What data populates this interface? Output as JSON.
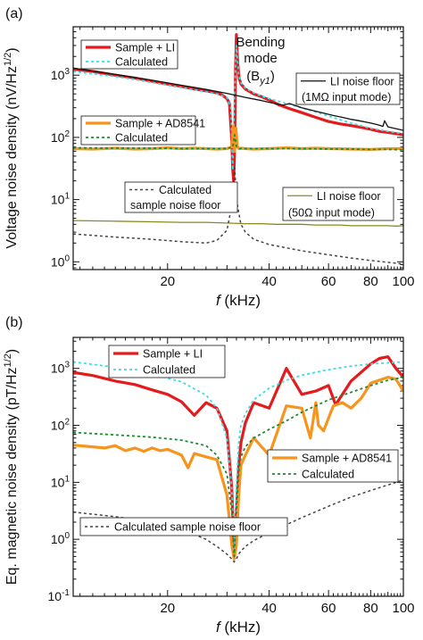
{
  "chart_data": [
    {
      "panel_label": "(a)",
      "type": "line",
      "xlabel_var": "f",
      "xlabel_unit": " (kHz)",
      "ylabel": "Voltage noise density (nV/Hz",
      "ylabel_exp": "1/2",
      "ylabel_close": ")",
      "x_scale": "log",
      "y_scale": "log",
      "xlim": [
        10.5,
        100
      ],
      "ylim": [
        0.75,
        6000
      ],
      "x_ticks": [
        20,
        40,
        60,
        80,
        100
      ],
      "x_tick_labels": [
        "20",
        "40",
        "60",
        "80",
        "100"
      ],
      "y_ticks": [
        1,
        10,
        100,
        1000
      ],
      "y_tick_labels": [
        [
          "10",
          "0"
        ],
        [
          "10",
          "1"
        ],
        [
          "10",
          "2"
        ],
        [
          "10",
          "3"
        ]
      ],
      "annotation": {
        "line1": "Bending",
        "line2": "mode",
        "line3": "(B",
        "sub": "y1",
        "line3_close": ")"
      },
      "legend": [
        {
          "box": "a-leg1",
          "entries": [
            {
              "series": 0,
              "label": "Sample + LI"
            },
            {
              "series": 1,
              "label": "Calculated"
            }
          ]
        },
        {
          "box": "a-leg2",
          "entries": [
            {
              "series": 2,
              "label": "Sample + AD8541"
            },
            {
              "series": 3,
              "label": "Calculated"
            }
          ]
        },
        {
          "box": "a-leg3",
          "entries": [
            {
              "series": 4,
              "label": "LI noise floor"
            },
            {
              "series": -1,
              "label": "(1MΩ input mode)"
            }
          ]
        },
        {
          "box": "a-leg4",
          "entries": [
            {
              "series": 6,
              "label": "Calculated"
            },
            {
              "series": -1,
              "label": "sample noise floor"
            }
          ]
        },
        {
          "box": "a-leg5",
          "entries": [
            {
              "series": 5,
              "label": "LI noise floor"
            },
            {
              "series": -1,
              "label": "(50Ω input mode)"
            }
          ]
        }
      ],
      "series": [
        {
          "name": "Sample + LI",
          "color": "#e41a1c",
          "width": 3.2,
          "dash": "",
          "x": [
            10.5,
            12,
            14,
            16,
            18,
            20,
            22,
            24,
            26,
            28,
            29,
            30,
            30.5,
            31,
            31.2,
            31.4,
            31.6,
            31.8,
            32,
            32.3,
            32.6,
            33,
            34,
            36,
            38,
            40,
            43,
            46,
            50,
            55,
            60,
            65,
            70,
            75,
            80,
            85,
            90,
            95,
            100
          ],
          "y": [
            1250,
            1150,
            1000,
            900,
            800,
            720,
            660,
            600,
            560,
            520,
            480,
            420,
            350,
            90,
            30,
            20,
            60,
            1200,
            4500,
            1500,
            900,
            720,
            600,
            500,
            450,
            400,
            330,
            290,
            250,
            210,
            180,
            165,
            155,
            145,
            135,
            125,
            120,
            115,
            110
          ]
        },
        {
          "name": "Calculated",
          "color": "#40dbe6",
          "width": 1.8,
          "dash": "3,3",
          "x": [
            10.5,
            12,
            14,
            16,
            18,
            20,
            22,
            24,
            26,
            28,
            30,
            30.8,
            31.2,
            31.6,
            32,
            32.5,
            33,
            34,
            36,
            38,
            40,
            45,
            50,
            60,
            70,
            80,
            90,
            100
          ],
          "y": [
            1150,
            1050,
            950,
            850,
            760,
            690,
            630,
            580,
            540,
            500,
            440,
            300,
            30,
            500,
            3000,
            1000,
            750,
            620,
            520,
            460,
            420,
            350,
            300,
            220,
            170,
            140,
            125,
            115
          ]
        },
        {
          "name": "Sample + AD8541",
          "color": "#f7941d",
          "width": 3.2,
          "dash": "",
          "x": [
            10.5,
            12,
            14,
            16,
            18,
            20,
            22,
            24,
            26,
            28,
            30,
            31,
            31.3,
            31.6,
            31.9,
            32.2,
            32.6,
            33,
            34,
            36,
            40,
            45,
            50,
            55,
            60,
            70,
            80,
            90,
            100
          ],
          "y": [
            66,
            65,
            67,
            65,
            66,
            68,
            66,
            67,
            66,
            65,
            66,
            70,
            150,
            60,
            140,
            70,
            66,
            67,
            66,
            65,
            66,
            68,
            66,
            67,
            66,
            65,
            64,
            66,
            66
          ]
        },
        {
          "name": "Calculated",
          "color": "#1f8a2e",
          "width": 1.8,
          "dash": "3,3",
          "x": [
            10.5,
            14,
            18,
            22,
            26,
            30,
            31.2,
            31.6,
            32,
            32.5,
            34,
            40,
            50,
            60,
            70,
            80,
            90,
            100
          ],
          "y": [
            68,
            67,
            67,
            66,
            66,
            66,
            70,
            110,
            72,
            66,
            66,
            66,
            66,
            65,
            65,
            64,
            64,
            63
          ]
        },
        {
          "name": "LI noise floor",
          "color": "#111111",
          "width": 1.3,
          "dash": "",
          "x": [
            10.5,
            14,
            18,
            22,
            26,
            30,
            34,
            38,
            42,
            44,
            46,
            50,
            54,
            58,
            62,
            66,
            70,
            74,
            78,
            80,
            84,
            87,
            88,
            90,
            94,
            100
          ],
          "y": [
            1300,
            1030,
            830,
            690,
            590,
            510,
            440,
            390,
            345,
            330,
            350,
            300,
            270,
            245,
            225,
            210,
            195,
            185,
            175,
            170,
            160,
            150,
            185,
            148,
            140,
            130
          ]
        },
        {
          "name": "LI noise floor",
          "color": "#8c8a1e",
          "width": 1.3,
          "dash": "",
          "x": [
            10.5,
            14,
            18,
            22,
            26,
            30,
            34,
            38,
            42,
            46,
            50,
            55,
            60,
            65,
            70,
            75,
            80,
            85,
            90,
            95,
            100
          ],
          "y": [
            4.6,
            4.5,
            4.4,
            4.3,
            4.3,
            4.2,
            4.1,
            4.1,
            4.0,
            4.0,
            4.0,
            3.9,
            3.9,
            3.9,
            3.8,
            3.8,
            3.8,
            3.8,
            3.8,
            3.75,
            3.8
          ]
        },
        {
          "name": "Calculated",
          "color": "#444444",
          "width": 1.5,
          "dash": "3,3",
          "x": [
            10.5,
            14,
            18,
            22,
            26,
            28,
            30,
            31,
            31.6,
            32,
            33,
            34,
            36,
            40,
            50,
            60,
            70,
            80,
            90,
            100
          ],
          "y": [
            2.8,
            2.5,
            2.3,
            2.1,
            2.0,
            2.2,
            3.2,
            8,
            35,
            10,
            4,
            3,
            2.3,
            1.9,
            1.5,
            1.3,
            1.15,
            1.05,
            0.98,
            0.92
          ]
        }
      ]
    },
    {
      "panel_label": "(b)",
      "type": "line",
      "xlabel_var": "f",
      "xlabel_unit": " (kHz)",
      "ylabel": "Eq. magnetic noise density (pT/Hz",
      "ylabel_exp": "1/2",
      "ylabel_close": ")",
      "x_scale": "log",
      "y_scale": "log",
      "xlim": [
        10.5,
        100
      ],
      "ylim": [
        0.1,
        3500
      ],
      "x_ticks": [
        20,
        40,
        60,
        80,
        100
      ],
      "x_tick_labels": [
        "20",
        "40",
        "60",
        "80",
        "100"
      ],
      "y_ticks": [
        0.1,
        1,
        10,
        100,
        1000
      ],
      "y_tick_labels": [
        [
          "10",
          "-1"
        ],
        [
          "10",
          "0"
        ],
        [
          "10",
          "1"
        ],
        [
          "10",
          "2"
        ],
        [
          "10",
          "3"
        ]
      ],
      "legend": [
        {
          "box": "b-leg1",
          "entries": [
            {
              "series": 0,
              "label": "Sample + LI"
            },
            {
              "series": 1,
              "label": "Calculated"
            }
          ]
        },
        {
          "box": "b-leg2",
          "entries": [
            {
              "series": 2,
              "label": "Sample + AD8541"
            },
            {
              "series": 3,
              "label": "Calculated"
            }
          ]
        },
        {
          "box": "b-leg3",
          "entries": [
            {
              "series": 4,
              "label": "Calculated sample noise floor"
            }
          ]
        }
      ],
      "series": [
        {
          "name": "Sample + LI",
          "color": "#e41a1c",
          "width": 3.2,
          "dash": "",
          "x": [
            10.5,
            12,
            14,
            16,
            18,
            20,
            22,
            24,
            26,
            28,
            30,
            31,
            31.5,
            32,
            32.5,
            33,
            34,
            36,
            40,
            45,
            50,
            55,
            60,
            63,
            70,
            80,
            85,
            90,
            95,
            100
          ],
          "y": [
            850,
            750,
            600,
            520,
            420,
            350,
            260,
            150,
            250,
            200,
            80,
            8,
            0.55,
            3,
            20,
            50,
            110,
            250,
            200,
            1000,
            350,
            400,
            500,
            230,
            600,
            1200,
            1500,
            1600,
            1000,
            700
          ]
        },
        {
          "name": "Calculated",
          "color": "#40dbe6",
          "width": 1.8,
          "dash": "3,3",
          "x": [
            10.5,
            14,
            18,
            22,
            26,
            28,
            30,
            31,
            31.5,
            32,
            32.5,
            33,
            34,
            36,
            40,
            45,
            50,
            60,
            70,
            80,
            90,
            100
          ],
          "y": [
            1300,
            1050,
            800,
            580,
            340,
            200,
            60,
            8,
            0.7,
            8,
            50,
            100,
            160,
            280,
            450,
            620,
            760,
            950,
            1100,
            1200,
            1250,
            1300
          ]
        },
        {
          "name": "Sample + AD8541",
          "color": "#f7941d",
          "width": 3.2,
          "dash": "",
          "x": [
            10.5,
            12,
            13,
            14,
            15,
            16,
            17,
            18,
            19,
            20,
            22,
            23,
            24,
            26,
            28,
            30,
            31,
            31.5,
            32,
            32.5,
            33,
            34,
            36,
            40,
            45,
            50,
            53,
            55,
            56,
            58,
            62,
            66,
            70,
            75,
            80,
            90,
            95,
            100
          ],
          "y": [
            45,
            42,
            40,
            44,
            36,
            40,
            35,
            40,
            36,
            38,
            30,
            18,
            32,
            28,
            25,
            6,
            0.8,
            0.45,
            0.8,
            6,
            20,
            30,
            60,
            30,
            220,
            200,
            60,
            250,
            100,
            80,
            220,
            250,
            200,
            300,
            550,
            700,
            650,
            400
          ]
        },
        {
          "name": "Calculated",
          "color": "#1f8a2e",
          "width": 1.8,
          "dash": "3,3",
          "x": [
            10.5,
            14,
            18,
            22,
            26,
            28,
            30,
            31,
            31.5,
            32,
            32.5,
            33,
            34,
            36,
            40,
            45,
            50,
            60,
            70,
            80,
            90,
            100
          ],
          "y": [
            75,
            68,
            62,
            55,
            44,
            30,
            14,
            3,
            0.5,
            3,
            15,
            28,
            42,
            60,
            85,
            120,
            170,
            280,
            380,
            500,
            620,
            700
          ]
        },
        {
          "name": "Calculated sample noise floor",
          "color": "#444444",
          "width": 1.5,
          "dash": "3,3",
          "x": [
            10.5,
            14,
            18,
            22,
            26,
            28,
            30,
            31,
            31.5,
            32,
            32.5,
            33,
            34,
            36,
            40,
            45,
            50,
            60,
            70,
            80,
            90,
            100
          ],
          "y": [
            3.0,
            2.5,
            2.0,
            1.5,
            1.0,
            0.75,
            0.55,
            0.45,
            0.4,
            0.45,
            0.55,
            0.62,
            0.75,
            0.95,
            1.3,
            1.8,
            2.4,
            3.8,
            5.5,
            7.2,
            9.0,
            11
          ]
        }
      ]
    }
  ]
}
